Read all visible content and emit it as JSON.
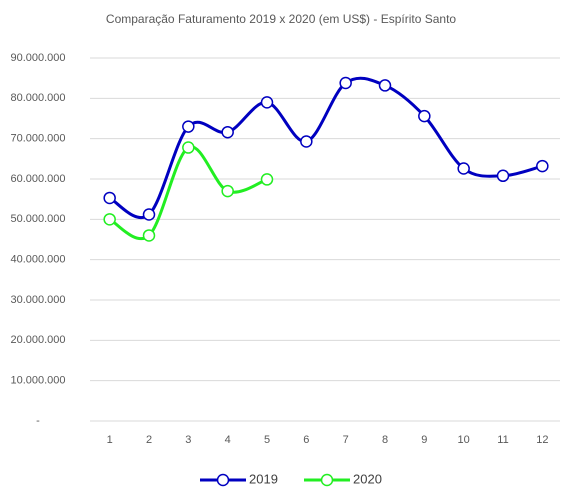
{
  "chart_data": {
    "type": "line",
    "title": "Comparação Faturamento 2019 x 2020 (em US$)  - Espírito Santo",
    "categories": [
      "1",
      "2",
      "3",
      "4",
      "5",
      "6",
      "7",
      "8",
      "9",
      "10",
      "11",
      "12"
    ],
    "series": [
      {
        "name": "2019",
        "color": "#0000c0",
        "values": [
          55300000,
          51200000,
          73000000,
          71600000,
          79000000,
          69300000,
          83800000,
          83200000,
          75600000,
          62600000,
          60800000,
          63200000
        ]
      },
      {
        "name": "2020",
        "color": "#22ee22",
        "values": [
          50000000,
          46000000,
          67800000,
          57000000,
          59900000,
          null,
          null,
          null,
          null,
          null,
          null,
          null
        ]
      }
    ],
    "ylim": [
      0,
      90000000
    ],
    "yticks": [
      {
        "value": 0,
        "label": "-"
      },
      {
        "value": 10000000,
        "label": "10.000.000"
      },
      {
        "value": 20000000,
        "label": "20.000.000"
      },
      {
        "value": 30000000,
        "label": "30.000.000"
      },
      {
        "value": 40000000,
        "label": "40.000.000"
      },
      {
        "value": 50000000,
        "label": "50.000.000"
      },
      {
        "value": 60000000,
        "label": "60.000.000"
      },
      {
        "value": 70000000,
        "label": "70.000.000"
      },
      {
        "value": 80000000,
        "label": "80.000.000"
      },
      {
        "value": 90000000,
        "label": "90.000.000"
      }
    ],
    "grid": true,
    "smooth": true,
    "legend": "bottom"
  }
}
